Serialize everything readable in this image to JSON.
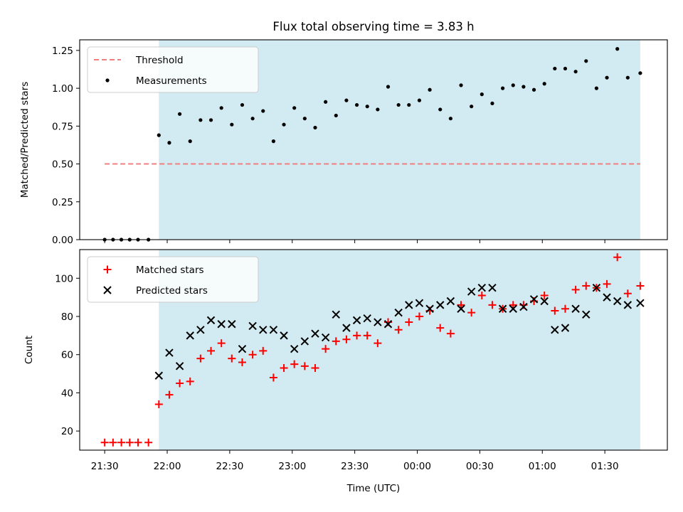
{
  "figure": {
    "title": "Flux total observing time = 3.83 h",
    "xlabel": "Time (UTC)"
  },
  "chart_data": [
    {
      "type": "scatter",
      "ylabel": "Matched/Predicted stars",
      "ylim": [
        0,
        1.32
      ],
      "yticks": [
        0.0,
        0.25,
        0.5,
        0.75,
        1.0,
        1.25
      ],
      "ytick_labels": [
        "0.00",
        "0.25",
        "0.50",
        "0.75",
        "1.00",
        "1.25"
      ],
      "xticks": [
        "21:30",
        "22:00",
        "22:30",
        "23:00",
        "23:30",
        "00:00",
        "00:30",
        "01:00",
        "01:30"
      ],
      "xtick_minutes": [
        0,
        30,
        60,
        90,
        120,
        150,
        180,
        210,
        240
      ],
      "xlim_minutes": [
        -12,
        270
      ],
      "legend": [
        {
          "label": "Threshold",
          "color": "#f08080",
          "marker": "dashed-line"
        },
        {
          "label": "Measurements",
          "color": "#000000",
          "marker": "dot"
        }
      ],
      "legend_placement": "upper-left",
      "shaded_region_minutes": [
        26,
        257
      ],
      "shaded_color": "#add8e6",
      "threshold": {
        "y": 0.5,
        "x_range_minutes": [
          0,
          257
        ],
        "color": "#f08080"
      },
      "series": [
        {
          "name": "Measurements",
          "color": "#000000",
          "x_minutes": [
            0,
            4,
            8,
            12,
            16,
            21,
            26,
            31,
            36,
            41,
            46,
            51,
            56,
            61,
            66,
            71,
            76,
            81,
            86,
            91,
            96,
            101,
            106,
            111,
            116,
            121,
            126,
            131,
            136,
            141,
            146,
            151,
            156,
            161,
            166,
            171,
            176,
            181,
            186,
            191,
            196,
            201,
            206,
            211,
            216,
            221,
            226,
            231,
            236,
            241,
            246,
            251,
            257
          ],
          "y": [
            0,
            0,
            0,
            0,
            0,
            0,
            0.69,
            0.64,
            0.83,
            0.65,
            0.79,
            0.79,
            0.87,
            0.76,
            0.89,
            0.8,
            0.85,
            0.65,
            0.76,
            0.87,
            0.8,
            0.74,
            0.91,
            0.82,
            0.92,
            0.89,
            0.88,
            0.86,
            1.01,
            0.89,
            0.89,
            0.92,
            0.99,
            0.86,
            0.8,
            1.02,
            0.88,
            0.96,
            0.9,
            1.0,
            1.02,
            1.01,
            0.99,
            1.03,
            1.13,
            1.13,
            1.11,
            1.18,
            1.0,
            1.07,
            1.26,
            1.07,
            1.1
          ]
        }
      ]
    },
    {
      "type": "scatter",
      "ylabel": "Count",
      "ylim": [
        10,
        115
      ],
      "yticks": [
        20,
        40,
        60,
        80,
        100
      ],
      "ytick_labels": [
        "20",
        "40",
        "60",
        "80",
        "100"
      ],
      "xticks": [
        "21:30",
        "22:00",
        "22:30",
        "23:00",
        "23:30",
        "00:00",
        "00:30",
        "01:00",
        "01:30"
      ],
      "xtick_minutes": [
        0,
        30,
        60,
        90,
        120,
        150,
        180,
        210,
        240
      ],
      "xlim_minutes": [
        -12,
        270
      ],
      "legend": [
        {
          "label": "Matched stars",
          "color": "#ff0000",
          "marker": "plus"
        },
        {
          "label": "Predicted stars",
          "color": "#000000",
          "marker": "x"
        }
      ],
      "legend_placement": "upper-left",
      "shaded_region_minutes": [
        26,
        257
      ],
      "shaded_color": "#add8e6",
      "series": [
        {
          "name": "Matched stars",
          "color": "#ff0000",
          "x_minutes": [
            0,
            4,
            8,
            12,
            16,
            21,
            26,
            31,
            36,
            41,
            46,
            51,
            56,
            61,
            66,
            71,
            76,
            81,
            86,
            91,
            96,
            101,
            106,
            111,
            116,
            121,
            126,
            131,
            136,
            141,
            146,
            151,
            156,
            161,
            166,
            171,
            176,
            181,
            186,
            191,
            196,
            201,
            206,
            211,
            216,
            221,
            226,
            231,
            236,
            241,
            246,
            251,
            257
          ],
          "y": [
            14,
            14,
            14,
            14,
            14,
            14,
            34,
            39,
            45,
            46,
            58,
            62,
            66,
            58,
            56,
            60,
            62,
            48,
            53,
            55,
            54,
            53,
            63,
            67,
            68,
            70,
            70,
            66,
            77,
            73,
            77,
            80,
            83,
            74,
            71,
            86,
            82,
            91,
            86,
            84,
            86,
            86,
            88,
            91,
            83,
            84,
            94,
            96,
            95,
            97,
            111,
            92,
            96
          ]
        },
        {
          "name": "Predicted stars",
          "color": "#000000",
          "x_minutes": [
            26,
            31,
            36,
            41,
            46,
            51,
            56,
            61,
            66,
            71,
            76,
            81,
            86,
            91,
            96,
            101,
            106,
            111,
            116,
            121,
            126,
            131,
            136,
            141,
            146,
            151,
            156,
            161,
            166,
            171,
            176,
            181,
            186,
            191,
            196,
            201,
            206,
            211,
            216,
            221,
            226,
            231,
            236,
            241,
            246,
            251,
            257
          ],
          "y": [
            49,
            61,
            54,
            70,
            73,
            78,
            76,
            76,
            63,
            75,
            73,
            73,
            70,
            63,
            67,
            71,
            69,
            81,
            74,
            78,
            79,
            77,
            76,
            82,
            86,
            87,
            84,
            86,
            88,
            84,
            93,
            95,
            95,
            84,
            84,
            85,
            89,
            88,
            73,
            74,
            84,
            81,
            95,
            90,
            88,
            86,
            87
          ]
        }
      ]
    }
  ]
}
